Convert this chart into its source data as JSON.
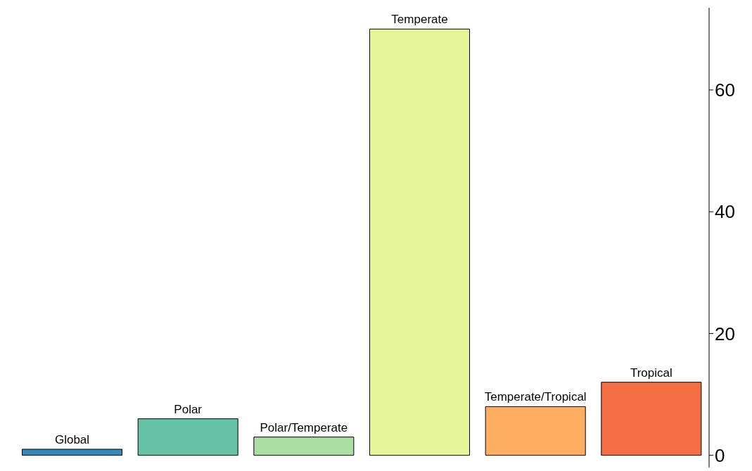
{
  "chart_data": {
    "type": "bar",
    "categories": [
      "Global",
      "Polar",
      "Polar/Temperate",
      "Temperate",
      "Temperate/Tropical",
      "Tropical"
    ],
    "values": [
      1,
      6,
      3,
      70,
      8,
      12
    ],
    "colors": [
      "#3288bd",
      "#66c2a5",
      "#abdda4",
      "#e6f598",
      "#fdae61",
      "#f46d43"
    ],
    "ylim": [
      -2,
      73.5
    ],
    "yticks": [
      0,
      20,
      40,
      60
    ],
    "grid": false,
    "tick_labels": "y"
  }
}
